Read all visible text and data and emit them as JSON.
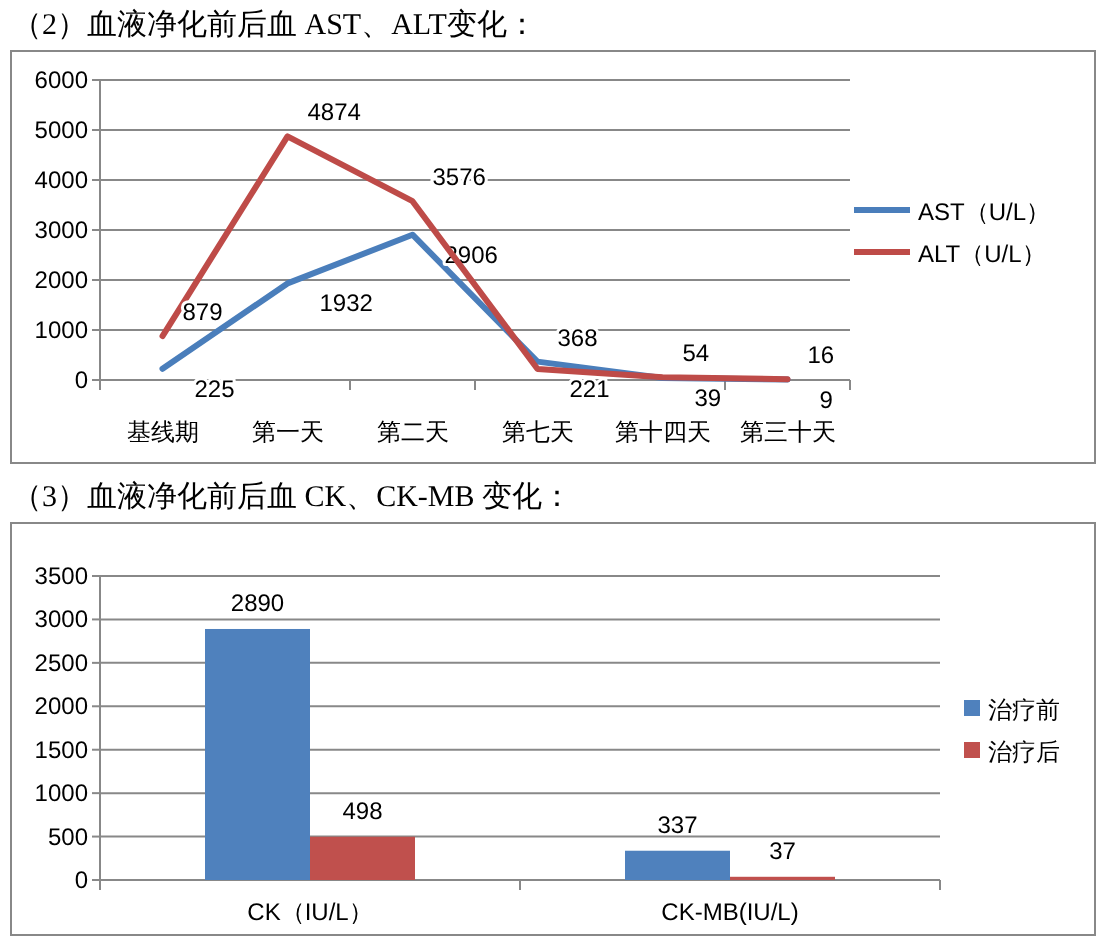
{
  "chart_data": [
    {
      "type": "line",
      "title": "（2）血液净化前后血 AST、ALT变化：",
      "categories": [
        "基线期",
        "第一天",
        "第二天",
        "第七天",
        "第十四天",
        "第三十天"
      ],
      "series": [
        {
          "name": "AST（U/L）",
          "color": "#4a7ebb",
          "values": [
            225,
            1932,
            2906,
            368,
            39,
            9
          ]
        },
        {
          "name": "ALT（U/L）",
          "color": "#be4b48",
          "values": [
            879,
            4874,
            3576,
            221,
            54,
            16
          ]
        }
      ],
      "ylim": [
        0,
        6000
      ],
      "yticks": [
        0,
        1000,
        2000,
        3000,
        4000,
        5000,
        6000
      ],
      "grid": "y",
      "legend": "right",
      "data_labels": true
    },
    {
      "type": "bar",
      "title": "（3）血液净化前后血 CK、CK-MB 变化：",
      "categories": [
        "CK（IU/L）",
        "CK-MB(IU/L)"
      ],
      "series": [
        {
          "name": "治疗前",
          "color": "#4f81bd",
          "values": [
            2890,
            337
          ]
        },
        {
          "name": "治疗后",
          "color": "#c0504d",
          "values": [
            498,
            37
          ]
        }
      ],
      "ylim": [
        0,
        3500
      ],
      "yticks": [
        0,
        500,
        1000,
        1500,
        2000,
        2500,
        3000,
        3500
      ],
      "grid": "y",
      "legend": "right",
      "data_labels": true
    }
  ]
}
